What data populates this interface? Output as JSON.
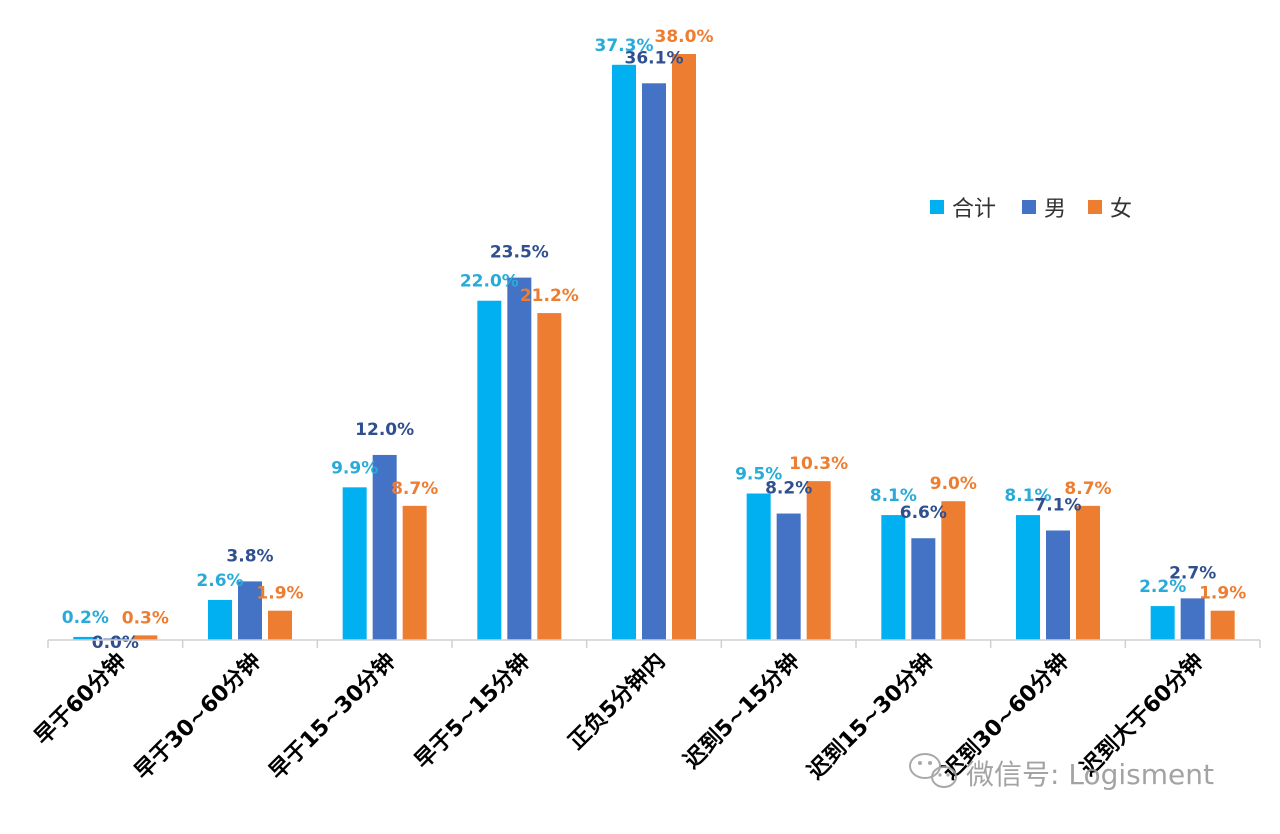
{
  "chart_data": {
    "type": "bar",
    "categories": [
      "早于60分钟",
      "早于30~60分钟",
      "早于15~30分钟",
      "早于5~15分钟",
      "正负5分钟内",
      "迟到5~15分钟",
      "迟到15~30分钟",
      "迟到30~60分钟",
      "迟到大于60分钟"
    ],
    "series": [
      {
        "name": "合计",
        "color": "#00B0F0",
        "values": [
          0.2,
          2.6,
          9.9,
          22.0,
          37.3,
          9.5,
          8.1,
          8.1,
          2.2
        ],
        "labels": [
          "0.2%",
          "2.6%",
          "9.9%",
          "22.0%",
          "37.3%",
          "9.5%",
          "8.1%",
          "8.1%",
          "2.2%"
        ]
      },
      {
        "name": "男",
        "color": "#4472C4",
        "values": [
          0.0,
          3.8,
          12.0,
          23.5,
          36.1,
          8.2,
          6.6,
          7.1,
          2.7
        ],
        "labels": [
          "0.0%",
          "3.8%",
          "12.0%",
          "23.5%",
          "36.1%",
          "8.2%",
          "6.6%",
          "7.1%",
          "2.7%"
        ]
      },
      {
        "name": "女",
        "color": "#ED7D31",
        "values": [
          0.3,
          1.9,
          8.7,
          21.2,
          38.0,
          10.3,
          9.0,
          8.7,
          1.9
        ],
        "labels": [
          "0.3%",
          "1.9%",
          "8.7%",
          "21.2%",
          "38.0%",
          "10.3%",
          "9.0%",
          "8.7%",
          "1.9%"
        ]
      }
    ],
    "title": "",
    "xlabel": "",
    "ylabel": "",
    "ylim": [
      0,
      38.0
    ],
    "grid": false,
    "legend_position": "top-right",
    "label_colors": [
      "#29ABD9",
      "#2F4F8F",
      "#ED7D31"
    ]
  },
  "watermark": {
    "text": "微信号: Logisment",
    "icon": "wechat-icon"
  }
}
